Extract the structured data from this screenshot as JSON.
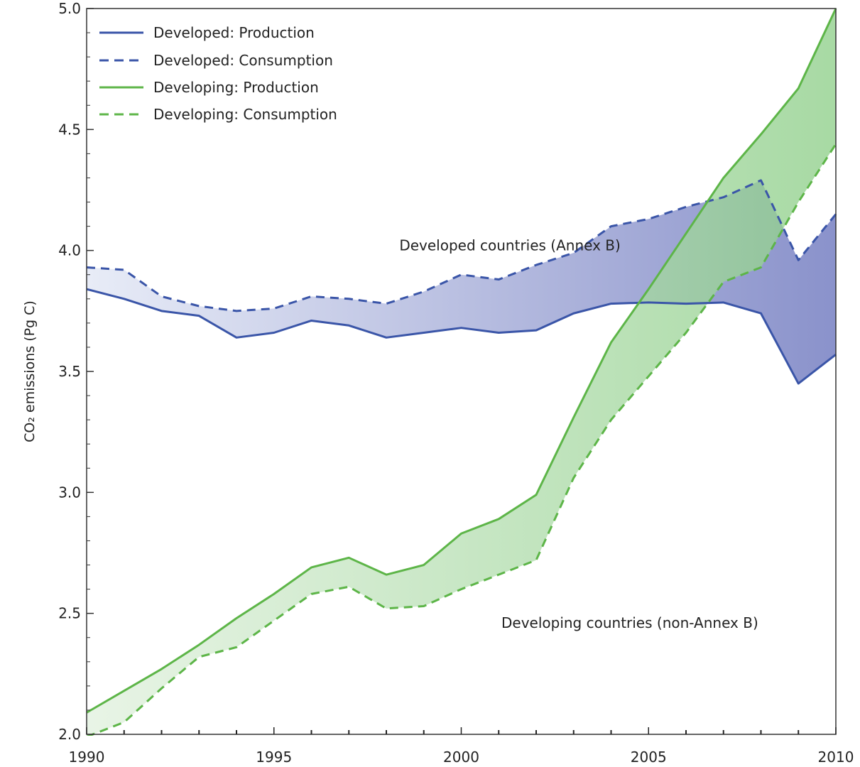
{
  "chart_data": {
    "type": "line",
    "title": "",
    "xlabel": "",
    "ylabel": "CO₂ emissions (Pg C)",
    "xlim": [
      1990,
      2010
    ],
    "ylim": [
      2.0,
      5.0
    ],
    "x_ticks": [
      "1990",
      "1995",
      "2000",
      "2005",
      "2010"
    ],
    "y_ticks": [
      "2.0",
      "2.5",
      "3.0",
      "3.5",
      "4.0",
      "4.5",
      "5.0"
    ],
    "x": [
      1990,
      1991,
      1992,
      1993,
      1994,
      1995,
      1996,
      1997,
      1998,
      1999,
      2000,
      2001,
      2002,
      2003,
      2004,
      2005,
      2006,
      2007,
      2008,
      2009,
      2010
    ],
    "series": [
      {
        "name": "Developed: Production",
        "style": "solid",
        "color": "#3a55a8",
        "values": [
          3.84,
          3.8,
          3.75,
          3.73,
          3.64,
          3.66,
          3.71,
          3.69,
          3.64,
          3.66,
          3.68,
          3.66,
          3.67,
          3.74,
          3.78,
          3.785,
          3.78,
          3.785,
          3.74,
          3.45,
          3.57
        ]
      },
      {
        "name": "Developed: Consumption",
        "style": "dashed",
        "color": "#3a55a8",
        "values": [
          3.93,
          3.92,
          3.81,
          3.77,
          3.75,
          3.76,
          3.81,
          3.8,
          3.78,
          3.83,
          3.9,
          3.88,
          3.94,
          3.99,
          4.1,
          4.13,
          4.18,
          4.22,
          4.29,
          3.96,
          4.15
        ]
      },
      {
        "name": "Developing: Production",
        "style": "solid",
        "color": "#5db548",
        "values": [
          2.09,
          2.18,
          2.27,
          2.37,
          2.48,
          2.58,
          2.69,
          2.73,
          2.66,
          2.7,
          2.83,
          2.89,
          2.99,
          3.31,
          3.62,
          3.84,
          4.07,
          4.3,
          4.48,
          4.67,
          5.0
        ]
      },
      {
        "name": "Developing: Consumption",
        "style": "dashed",
        "color": "#5db548",
        "values": [
          1.99,
          2.05,
          2.19,
          2.32,
          2.36,
          2.47,
          2.58,
          2.61,
          2.52,
          2.53,
          2.6,
          2.66,
          2.72,
          3.06,
          3.3,
          3.48,
          3.66,
          3.87,
          3.93,
          4.2,
          4.44
        ]
      }
    ],
    "bands": [
      {
        "between": [
          "Developed: Production",
          "Developed: Consumption"
        ],
        "color_start": "#e8ecf7",
        "color_end": "#8a92cb"
      },
      {
        "between": [
          "Developing: Production",
          "Developing: Consumption"
        ],
        "color_start": "#e2f1df",
        "color_end": "#8fcf8a"
      }
    ],
    "annotations": [
      {
        "text": "Developed countries (Annex B)",
        "x": 2001.3,
        "y": 4.0
      },
      {
        "text": "Developing countries (non-Annex B)",
        "x": 2004.5,
        "y": 2.44
      }
    ],
    "legend_position": "top-left",
    "grid": false
  }
}
